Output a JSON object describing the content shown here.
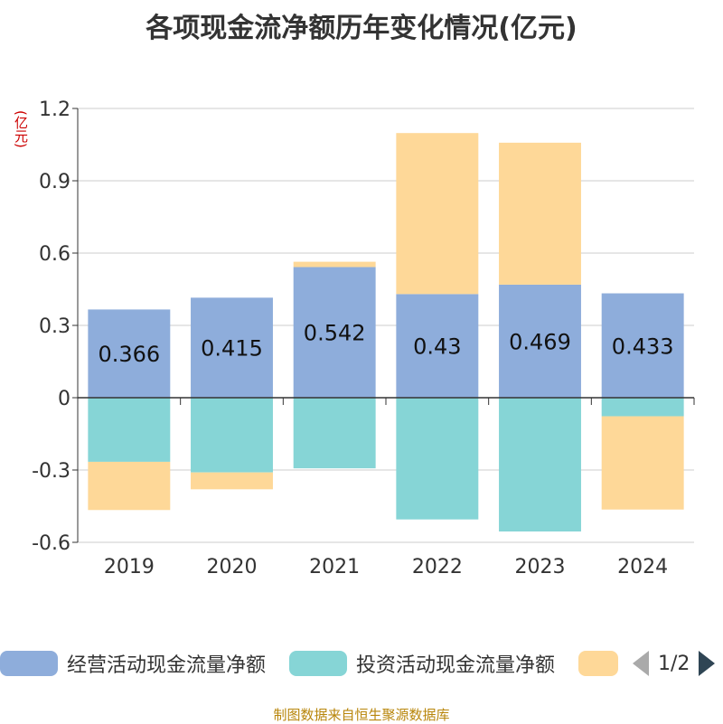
{
  "chart_data": {
    "type": "bar",
    "stacked": true,
    "title": "各项现金流净额历年变化情况(亿元)",
    "ylabel": "(亿元)",
    "categories": [
      "2019",
      "2020",
      "2021",
      "2022",
      "2023",
      "2024"
    ],
    "ylim": [
      -0.6,
      1.2
    ],
    "yticks": [
      "1.2",
      "0.9",
      "0.6",
      "0.3",
      "0",
      "-0.3",
      "-0.6"
    ],
    "grid": true,
    "series": [
      {
        "name": "经营活动现金流量净额",
        "color": "#8eaddb",
        "values": [
          0.366,
          0.415,
          0.542,
          0.43,
          0.469,
          0.433
        ],
        "labels": [
          "0.366",
          "0.415",
          "0.542",
          "0.43",
          "0.469",
          "0.433"
        ]
      },
      {
        "name": "投资活动现金流量净额",
        "color": "#86d5d6",
        "values": [
          -0.266,
          -0.31,
          -0.293,
          -0.505,
          -0.555,
          -0.077
        ]
      },
      {
        "name": "",
        "color": "#fed898",
        "values": [
          -0.2,
          -0.07,
          0.022,
          0.668,
          0.589,
          -0.387
        ]
      }
    ]
  },
  "legend": {
    "items": [
      {
        "label": "经营活动现金流量净额",
        "color": "#8eaddb"
      },
      {
        "label": "投资活动现金流量净额",
        "color": "#86d5d6"
      },
      {
        "label": "",
        "color": "#fed898"
      }
    ],
    "page_indicator": "1/2"
  },
  "footer": "制图数据来自恒生聚源数据库"
}
